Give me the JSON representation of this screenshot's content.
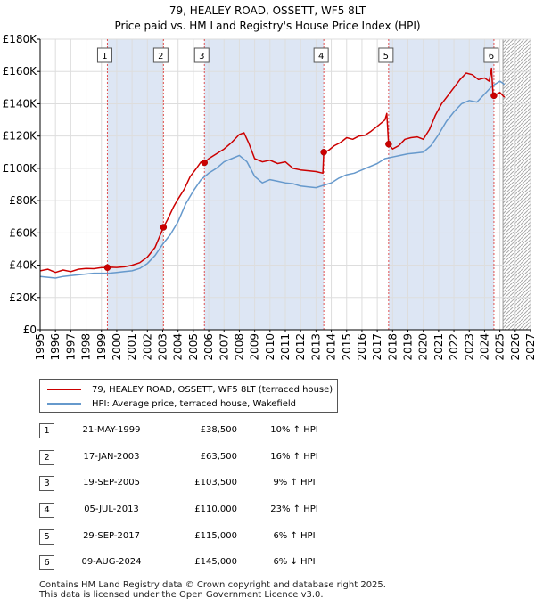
{
  "title_line1": "79, HEALEY ROAD, OSSETT, WF5 8LT",
  "title_line2": "Price paid vs. HM Land Registry's House Price Index (HPI)",
  "colors": {
    "property_line": "#cc0000",
    "hpi_line": "#6699cc",
    "shading": "#dde6f4",
    "grid": "#dddddd",
    "marker_line": "#e05050",
    "hatch": "#999999"
  },
  "legend": {
    "property_label": "79, HEALEY ROAD, OSSETT, WF5 8LT (terraced house)",
    "hpi_label": "HPI: Average price, terraced house, Wakefield"
  },
  "sales": [
    {
      "num": "1",
      "date": "21-MAY-1999",
      "price": "£38,500",
      "hpi": "10% ↑ HPI"
    },
    {
      "num": "2",
      "date": "17-JAN-2003",
      "price": "£63,500",
      "hpi": "16% ↑ HPI"
    },
    {
      "num": "3",
      "date": "19-SEP-2005",
      "price": "£103,500",
      "hpi": "9% ↑ HPI"
    },
    {
      "num": "4",
      "date": "05-JUL-2013",
      "price": "£110,000",
      "hpi": "23% ↑ HPI"
    },
    {
      "num": "5",
      "date": "29-SEP-2017",
      "price": "£115,000",
      "hpi": "6% ↑ HPI"
    },
    {
      "num": "6",
      "date": "09-AUG-2024",
      "price": "£145,000",
      "hpi": "6% ↓ HPI"
    }
  ],
  "footer_line1": "Contains HM Land Registry data © Crown copyright and database right 2025.",
  "footer_line2": "This data is licensed under the Open Government Licence v3.0.",
  "chart_data": {
    "type": "line",
    "title": "79, HEALEY ROAD, OSSETT, WF5 8LT",
    "subtitle": "Price paid vs. HM Land Registry's House Price Index (HPI)",
    "xlabel": "",
    "ylabel": "",
    "xlim": [
      1995,
      2027
    ],
    "ylim": [
      0,
      180000
    ],
    "x_ticks": [
      1995,
      1996,
      1997,
      1998,
      1999,
      2000,
      2001,
      2002,
      2003,
      2004,
      2005,
      2006,
      2007,
      2008,
      2009,
      2010,
      2011,
      2012,
      2013,
      2014,
      2015,
      2016,
      2017,
      2018,
      2019,
      2020,
      2021,
      2022,
      2023,
      2024,
      2025,
      2026,
      2027
    ],
    "y_ticks": [
      0,
      20000,
      40000,
      60000,
      80000,
      100000,
      120000,
      140000,
      160000,
      180000
    ],
    "y_tick_labels": [
      "£0",
      "£20K",
      "£40K",
      "£60K",
      "£80K",
      "£100K",
      "£120K",
      "£140K",
      "£160K",
      "£180K"
    ],
    "forecast_start": 2025.2,
    "series": [
      {
        "name": "79, HEALEY ROAD, OSSETT, WF5 8LT (terraced house)",
        "points": [
          [
            1995.0,
            36500
          ],
          [
            1995.5,
            37500
          ],
          [
            1996.0,
            35500
          ],
          [
            1996.5,
            37000
          ],
          [
            1997.0,
            36000
          ],
          [
            1997.5,
            37500
          ],
          [
            1998.0,
            38000
          ],
          [
            1998.5,
            37800
          ],
          [
            1999.0,
            38500
          ],
          [
            1999.39,
            38500
          ],
          [
            1999.7,
            38700
          ],
          [
            2000.0,
            38600
          ],
          [
            2000.5,
            39000
          ],
          [
            2001.0,
            40000
          ],
          [
            2001.5,
            41500
          ],
          [
            2002.0,
            45000
          ],
          [
            2002.5,
            51000
          ],
          [
            2003.05,
            63500
          ],
          [
            2003.3,
            68000
          ],
          [
            2003.7,
            76000
          ],
          [
            2004.0,
            81000
          ],
          [
            2004.4,
            87000
          ],
          [
            2004.8,
            95000
          ],
          [
            2005.2,
            100000
          ],
          [
            2005.5,
            104000
          ],
          [
            2005.72,
            103500
          ],
          [
            2006.0,
            106000
          ],
          [
            2006.5,
            109000
          ],
          [
            2007.0,
            112000
          ],
          [
            2007.5,
            116000
          ],
          [
            2008.0,
            121000
          ],
          [
            2008.3,
            122000
          ],
          [
            2008.6,
            116000
          ],
          [
            2009.0,
            106000
          ],
          [
            2009.5,
            104000
          ],
          [
            2010.0,
            105000
          ],
          [
            2010.5,
            103000
          ],
          [
            2011.0,
            104000
          ],
          [
            2011.5,
            100000
          ],
          [
            2012.0,
            99000
          ],
          [
            2012.5,
            98500
          ],
          [
            2013.0,
            98000
          ],
          [
            2013.45,
            97000
          ],
          [
            2013.51,
            110000
          ],
          [
            2013.8,
            111000
          ],
          [
            2014.2,
            114000
          ],
          [
            2014.6,
            116000
          ],
          [
            2015.0,
            119000
          ],
          [
            2015.4,
            118000
          ],
          [
            2015.8,
            120000
          ],
          [
            2016.2,
            120500
          ],
          [
            2016.6,
            123000
          ],
          [
            2017.0,
            126000
          ],
          [
            2017.5,
            130000
          ],
          [
            2017.62,
            134000
          ],
          [
            2017.74,
            115000
          ],
          [
            2018.0,
            112000
          ],
          [
            2018.4,
            114000
          ],
          [
            2018.8,
            118000
          ],
          [
            2019.2,
            119000
          ],
          [
            2019.6,
            119500
          ],
          [
            2020.0,
            118000
          ],
          [
            2020.4,
            124000
          ],
          [
            2020.8,
            133000
          ],
          [
            2021.2,
            140000
          ],
          [
            2021.6,
            145000
          ],
          [
            2022.0,
            150000
          ],
          [
            2022.4,
            155000
          ],
          [
            2022.8,
            159000
          ],
          [
            2023.2,
            158000
          ],
          [
            2023.6,
            155000
          ],
          [
            2024.0,
            156000
          ],
          [
            2024.3,
            154000
          ],
          [
            2024.45,
            162000
          ],
          [
            2024.55,
            146000
          ],
          [
            2024.61,
            145000
          ],
          [
            2024.8,
            146000
          ],
          [
            2025.0,
            147000
          ],
          [
            2025.3,
            144000
          ]
        ]
      },
      {
        "name": "HPI: Average price, terraced house, Wakefield",
        "points": [
          [
            1995.0,
            33000
          ],
          [
            1995.5,
            32500
          ],
          [
            1996.0,
            32000
          ],
          [
            1996.5,
            33000
          ],
          [
            1997.0,
            33500
          ],
          [
            1997.5,
            34000
          ],
          [
            1998.0,
            34500
          ],
          [
            1998.5,
            35000
          ],
          [
            1999.0,
            35000
          ],
          [
            1999.5,
            35000
          ],
          [
            2000.0,
            35500
          ],
          [
            2000.5,
            36000
          ],
          [
            2001.0,
            36500
          ],
          [
            2001.5,
            38000
          ],
          [
            2002.0,
            41000
          ],
          [
            2002.5,
            46000
          ],
          [
            2003.0,
            53000
          ],
          [
            2003.5,
            59000
          ],
          [
            2004.0,
            67000
          ],
          [
            2004.5,
            78000
          ],
          [
            2005.0,
            86000
          ],
          [
            2005.5,
            93000
          ],
          [
            2006.0,
            97000
          ],
          [
            2006.5,
            100000
          ],
          [
            2007.0,
            104000
          ],
          [
            2007.5,
            106000
          ],
          [
            2008.0,
            108000
          ],
          [
            2008.5,
            104000
          ],
          [
            2009.0,
            95000
          ],
          [
            2009.5,
            91000
          ],
          [
            2010.0,
            93000
          ],
          [
            2010.5,
            92000
          ],
          [
            2011.0,
            91000
          ],
          [
            2011.5,
            90500
          ],
          [
            2012.0,
            89000
          ],
          [
            2012.5,
            88500
          ],
          [
            2013.0,
            88000
          ],
          [
            2013.5,
            89500
          ],
          [
            2014.0,
            91000
          ],
          [
            2014.5,
            94000
          ],
          [
            2015.0,
            96000
          ],
          [
            2015.5,
            97000
          ],
          [
            2016.0,
            99000
          ],
          [
            2016.5,
            101000
          ],
          [
            2017.0,
            103000
          ],
          [
            2017.5,
            106000
          ],
          [
            2018.0,
            107000
          ],
          [
            2018.5,
            108000
          ],
          [
            2019.0,
            109000
          ],
          [
            2019.5,
            109500
          ],
          [
            2020.0,
            110000
          ],
          [
            2020.5,
            114000
          ],
          [
            2021.0,
            121000
          ],
          [
            2021.5,
            129000
          ],
          [
            2022.0,
            135000
          ],
          [
            2022.5,
            140000
          ],
          [
            2023.0,
            142000
          ],
          [
            2023.5,
            141000
          ],
          [
            2024.0,
            146000
          ],
          [
            2024.5,
            151000
          ],
          [
            2025.0,
            154000
          ],
          [
            2025.3,
            152000
          ]
        ]
      }
    ],
    "sale_points": [
      {
        "label": "1",
        "x": 1999.39,
        "y": 38500
      },
      {
        "label": "2",
        "x": 2003.05,
        "y": 63500
      },
      {
        "label": "3",
        "x": 2005.72,
        "y": 103500
      },
      {
        "label": "4",
        "x": 2013.51,
        "y": 110000
      },
      {
        "label": "5",
        "x": 2017.74,
        "y": 115000
      },
      {
        "label": "6",
        "x": 2024.61,
        "y": 145000
      }
    ],
    "shaded_periods": [
      [
        1999.39,
        2003.05
      ],
      [
        2005.72,
        2013.51
      ],
      [
        2017.74,
        2024.61
      ]
    ]
  }
}
